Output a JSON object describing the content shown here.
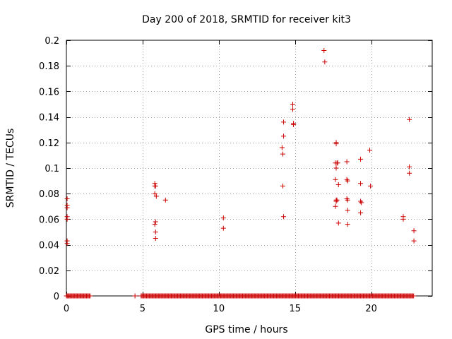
{
  "chart_data": {
    "type": "scatter",
    "title": "Day 200 of 2018, SRMTID for receiver kit3",
    "xlabel": "GPS time / hours",
    "ylabel": "SRMTID / TECUs",
    "xlim": [
      0,
      24
    ],
    "ylim": [
      0,
      0.2
    ],
    "xticks": [
      0,
      5,
      10,
      15,
      20
    ],
    "xtick_labels": [
      "0",
      "5",
      "10",
      "15",
      "20"
    ],
    "yticks": [
      0,
      0.02,
      0.04,
      0.06,
      0.08,
      0.1,
      0.12,
      0.14,
      0.16,
      0.18,
      0.2
    ],
    "ytick_labels": [
      "0",
      "0.02",
      "0.04",
      "0.06",
      "0.08",
      "0.1",
      "0.12",
      "0.14",
      "0.16",
      "0.18",
      "0.2"
    ],
    "grid": true,
    "marker": "+",
    "color": "#cc0000",
    "series": [
      {
        "name": "SRMTID",
        "points": [
          [
            0.05,
            0.076
          ],
          [
            0.05,
            0.071
          ],
          [
            0.05,
            0.069
          ],
          [
            0.05,
            0.062
          ],
          [
            0.05,
            0.06
          ],
          [
            0.05,
            0.043
          ],
          [
            0.05,
            0.041
          ],
          [
            5.8,
            0.088
          ],
          [
            5.8,
            0.086
          ],
          [
            5.85,
            0.086
          ],
          [
            5.8,
            0.08
          ],
          [
            5.9,
            0.078
          ],
          [
            5.85,
            0.058
          ],
          [
            5.8,
            0.056
          ],
          [
            5.85,
            0.05
          ],
          [
            5.85,
            0.045
          ],
          [
            6.5,
            0.075
          ],
          [
            10.3,
            0.061
          ],
          [
            10.3,
            0.053
          ],
          [
            14.15,
            0.116
          ],
          [
            14.2,
            0.111
          ],
          [
            14.25,
            0.136
          ],
          [
            14.25,
            0.125
          ],
          [
            14.2,
            0.086
          ],
          [
            14.25,
            0.062
          ],
          [
            14.85,
            0.15
          ],
          [
            14.85,
            0.146
          ],
          [
            14.9,
            0.135
          ],
          [
            14.9,
            0.134
          ],
          [
            16.9,
            0.192
          ],
          [
            16.95,
            0.183
          ],
          [
            17.7,
            0.12
          ],
          [
            17.7,
            0.119
          ],
          [
            17.65,
            0.104
          ],
          [
            17.75,
            0.104
          ],
          [
            17.8,
            0.104
          ],
          [
            17.7,
            0.1
          ],
          [
            17.65,
            0.091
          ],
          [
            17.85,
            0.087
          ],
          [
            17.7,
            0.075
          ],
          [
            17.75,
            0.075
          ],
          [
            17.7,
            0.074
          ],
          [
            17.65,
            0.07
          ],
          [
            17.85,
            0.057
          ],
          [
            18.4,
            0.105
          ],
          [
            18.4,
            0.091
          ],
          [
            18.45,
            0.09
          ],
          [
            18.4,
            0.076
          ],
          [
            18.45,
            0.075
          ],
          [
            18.45,
            0.067
          ],
          [
            18.45,
            0.056
          ],
          [
            19.3,
            0.107
          ],
          [
            19.3,
            0.088
          ],
          [
            19.3,
            0.074
          ],
          [
            19.35,
            0.073
          ],
          [
            19.3,
            0.065
          ],
          [
            19.9,
            0.114
          ],
          [
            19.95,
            0.086
          ],
          [
            22.1,
            0.062
          ],
          [
            22.1,
            0.06
          ],
          [
            22.5,
            0.138
          ],
          [
            22.5,
            0.101
          ],
          [
            22.5,
            0.096
          ],
          [
            22.8,
            0.051
          ],
          [
            22.8,
            0.043
          ]
        ]
      }
    ],
    "zero_intervals": [
      [
        0.0,
        1.6
      ],
      [
        4.5,
        4.5
      ],
      [
        4.9,
        22.8
      ]
    ]
  }
}
